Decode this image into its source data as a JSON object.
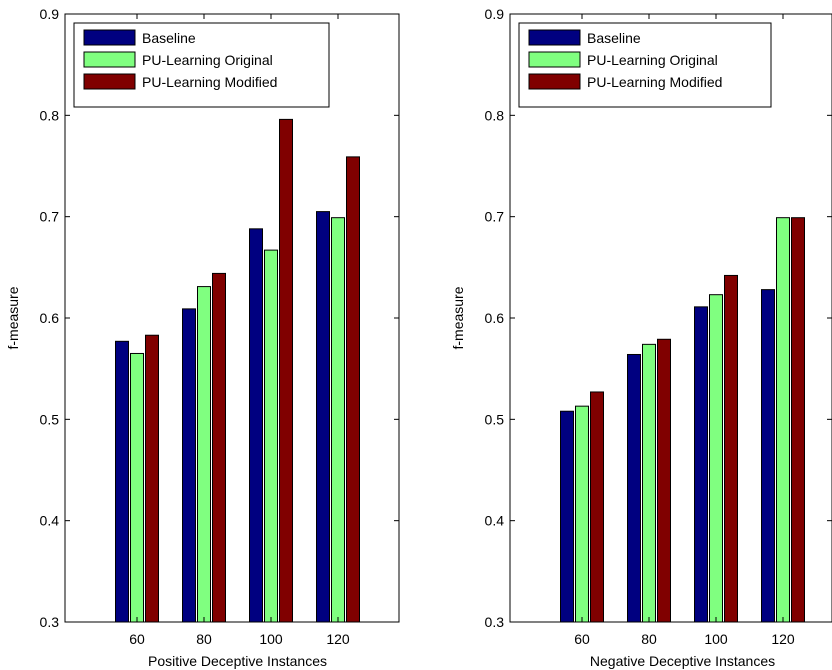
{
  "chart_data": [
    {
      "type": "bar",
      "categories": [
        "60",
        "80",
        "100",
        "120"
      ],
      "series": [
        {
          "name": "Baseline",
          "values": [
            0.577,
            0.609,
            0.688,
            0.705
          ],
          "color": "#000080"
        },
        {
          "name": "PU-Learning Original",
          "values": [
            0.565,
            0.631,
            0.667,
            0.699
          ],
          "color": "#80ff80"
        },
        {
          "name": "PU-Learning Modified",
          "values": [
            0.583,
            0.644,
            0.796,
            0.759
          ],
          "color": "#800000"
        }
      ],
      "xlabel": "Positive Deceptive Instances",
      "ylabel": "f-measure",
      "ylim": [
        0.3,
        0.9
      ],
      "yticks": [
        "0.3",
        "0.4",
        "0.5",
        "0.6",
        "0.7",
        "0.8",
        "0.9"
      ],
      "legend_position": "top-left",
      "grid": false
    },
    {
      "type": "bar",
      "categories": [
        "60",
        "80",
        "100",
        "120"
      ],
      "series": [
        {
          "name": "Baseline",
          "values": [
            0.508,
            0.564,
            0.611,
            0.628
          ],
          "color": "#000080"
        },
        {
          "name": "PU-Learning Original",
          "values": [
            0.513,
            0.574,
            0.623,
            0.699
          ],
          "color": "#80ff80"
        },
        {
          "name": "PU-Learning Modified",
          "values": [
            0.527,
            0.579,
            0.642,
            0.699
          ],
          "color": "#800000"
        }
      ],
      "xlabel": "Negative Deceptive Instances",
      "ylabel": "f-measure",
      "ylim": [
        0.3,
        0.9
      ],
      "yticks": [
        "0.3",
        "0.4",
        "0.5",
        "0.6",
        "0.7",
        "0.8",
        "0.9"
      ],
      "legend_position": "top-left",
      "grid": false
    }
  ]
}
